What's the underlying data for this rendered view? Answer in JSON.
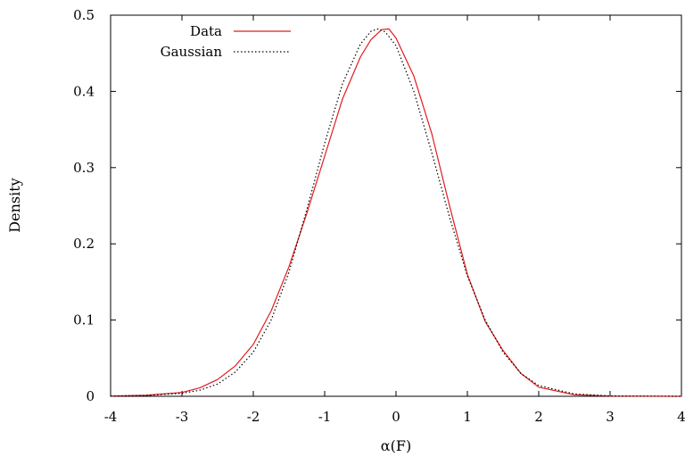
{
  "chart_data": {
    "type": "line",
    "title": "",
    "xlabel": "α(F)",
    "ylabel": "Density",
    "xlim": [
      -4,
      4
    ],
    "ylim": [
      0,
      0.5
    ],
    "xticks": [
      "-4",
      "-3",
      "-2",
      "-1",
      "0",
      "1",
      "2",
      "3",
      "4"
    ],
    "yticks": [
      "0",
      "0.1",
      "0.2",
      "0.3",
      "0.4",
      "0.5"
    ],
    "grid": false,
    "legend_position": "top-left",
    "series": [
      {
        "name": "Data",
        "color": "#e41a1c",
        "style": "solid",
        "x": [
          -4.0,
          -3.5,
          -3.0,
          -2.75,
          -2.5,
          -2.25,
          -2.0,
          -1.75,
          -1.5,
          -1.25,
          -1.0,
          -0.75,
          -0.5,
          -0.35,
          -0.2,
          -0.1,
          0.0,
          0.25,
          0.5,
          0.75,
          1.0,
          1.25,
          1.5,
          1.75,
          2.0,
          2.5,
          3.0,
          3.5,
          4.0
        ],
        "y": [
          0.0003,
          0.0013,
          0.005,
          0.011,
          0.022,
          0.04,
          0.068,
          0.112,
          0.17,
          0.24,
          0.315,
          0.39,
          0.445,
          0.468,
          0.481,
          0.482,
          0.47,
          0.42,
          0.345,
          0.25,
          0.16,
          0.098,
          0.06,
          0.03,
          0.012,
          0.002,
          0.0003,
          0.0001,
          0.0
        ]
      },
      {
        "name": "Gaussian",
        "color": "#000000",
        "style": "dotted",
        "x": [
          -4.0,
          -3.5,
          -3.0,
          -2.75,
          -2.5,
          -2.25,
          -2.0,
          -1.75,
          -1.5,
          -1.25,
          -1.0,
          -0.75,
          -0.5,
          -0.35,
          -0.25,
          -0.15,
          0.0,
          0.25,
          0.5,
          0.75,
          1.0,
          1.25,
          1.5,
          1.75,
          2.0,
          2.5,
          3.0,
          3.5,
          4.0
        ],
        "y": [
          0.0002,
          0.001,
          0.004,
          0.008,
          0.016,
          0.032,
          0.058,
          0.1,
          0.163,
          0.245,
          0.332,
          0.41,
          0.462,
          0.479,
          0.482,
          0.478,
          0.46,
          0.4,
          0.32,
          0.235,
          0.158,
          0.1,
          0.058,
          0.03,
          0.014,
          0.003,
          0.0005,
          0.0001,
          0.0
        ]
      }
    ]
  }
}
